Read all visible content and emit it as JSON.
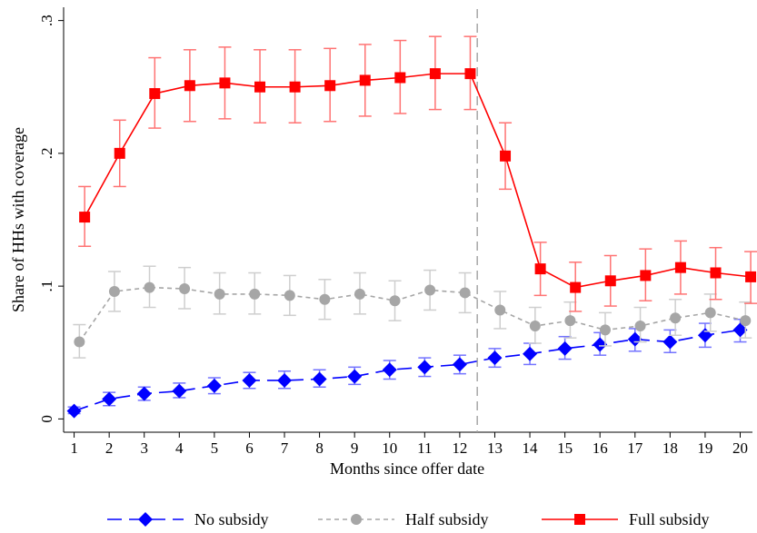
{
  "chart_data": {
    "type": "line",
    "xlabel": "Months since offer date",
    "ylabel": "Share of HHs with coverage",
    "x": [
      1,
      2,
      3,
      4,
      5,
      6,
      7,
      8,
      9,
      10,
      11,
      12,
      13,
      14,
      15,
      16,
      17,
      18,
      19,
      20
    ],
    "x_tick_labels": [
      "1",
      "2",
      "3",
      "4",
      "5",
      "6",
      "7",
      "8",
      "9",
      "10",
      "11",
      "12",
      "13",
      "14",
      "15",
      "16",
      "17",
      "18",
      "19",
      "20"
    ],
    "y_ticks": [
      0,
      0.1,
      0.2,
      0.3
    ],
    "y_tick_labels": [
      "0",
      ".1",
      ".2",
      ".3"
    ],
    "xlim": [
      0.7,
      20.35
    ],
    "ylim": [
      -0.01,
      0.31
    ],
    "vertical_reference_line": 12.5,
    "legend_placement": "bottom",
    "grid": false,
    "series": [
      {
        "name": "No subsidy",
        "color": "#0000ff",
        "marker": "diamond",
        "line_style": "long-dash",
        "x_offset": 0,
        "values": [
          0.006,
          0.015,
          0.019,
          0.021,
          0.025,
          0.029,
          0.029,
          0.03,
          0.032,
          0.037,
          0.039,
          0.041,
          0.046,
          0.049,
          0.053,
          0.056,
          0.06,
          0.058,
          0.063,
          0.067
        ],
        "ci_low": [
          0.004,
          0.01,
          0.014,
          0.016,
          0.019,
          0.023,
          0.023,
          0.024,
          0.026,
          0.03,
          0.032,
          0.034,
          0.039,
          0.041,
          0.045,
          0.048,
          0.051,
          0.05,
          0.054,
          0.058
        ],
        "ci_high": [
          0.009,
          0.02,
          0.024,
          0.027,
          0.031,
          0.035,
          0.036,
          0.037,
          0.039,
          0.044,
          0.046,
          0.048,
          0.053,
          0.057,
          0.062,
          0.065,
          0.068,
          0.067,
          0.072,
          0.075
        ]
      },
      {
        "name": "Half subsidy",
        "color": "#a6a6a6",
        "marker": "circle",
        "line_style": "short-dash",
        "x_offset": 0.15,
        "values": [
          0.058,
          0.096,
          0.099,
          0.098,
          0.094,
          0.094,
          0.093,
          0.09,
          0.094,
          0.089,
          0.097,
          0.095,
          0.082,
          0.07,
          0.074,
          0.067,
          0.07,
          0.076,
          0.08,
          0.074
        ],
        "ci_low": [
          0.046,
          0.081,
          0.084,
          0.083,
          0.079,
          0.079,
          0.078,
          0.075,
          0.079,
          0.074,
          0.082,
          0.08,
          0.068,
          0.057,
          0.061,
          0.055,
          0.058,
          0.063,
          0.066,
          0.061
        ],
        "ci_high": [
          0.071,
          0.111,
          0.115,
          0.114,
          0.11,
          0.11,
          0.108,
          0.105,
          0.11,
          0.104,
          0.112,
          0.11,
          0.096,
          0.084,
          0.088,
          0.08,
          0.084,
          0.09,
          0.094,
          0.088
        ]
      },
      {
        "name": "Full subsidy",
        "color": "#ff0000",
        "marker": "square",
        "line_style": "solid",
        "x_offset": 0.3,
        "values": [
          0.152,
          0.2,
          0.245,
          0.251,
          0.253,
          0.25,
          0.25,
          0.251,
          0.255,
          0.257,
          0.26,
          0.26,
          0.198,
          0.113,
          0.099,
          0.104,
          0.108,
          0.114,
          0.11,
          0.107
        ],
        "ci_low": [
          0.13,
          0.175,
          0.219,
          0.224,
          0.226,
          0.223,
          0.223,
          0.224,
          0.228,
          0.23,
          0.233,
          0.233,
          0.173,
          0.093,
          0.081,
          0.085,
          0.089,
          0.094,
          0.09,
          0.087
        ],
        "ci_high": [
          0.175,
          0.225,
          0.272,
          0.278,
          0.28,
          0.278,
          0.278,
          0.279,
          0.282,
          0.285,
          0.288,
          0.288,
          0.223,
          0.133,
          0.118,
          0.123,
          0.128,
          0.134,
          0.129,
          0.126
        ]
      }
    ]
  }
}
